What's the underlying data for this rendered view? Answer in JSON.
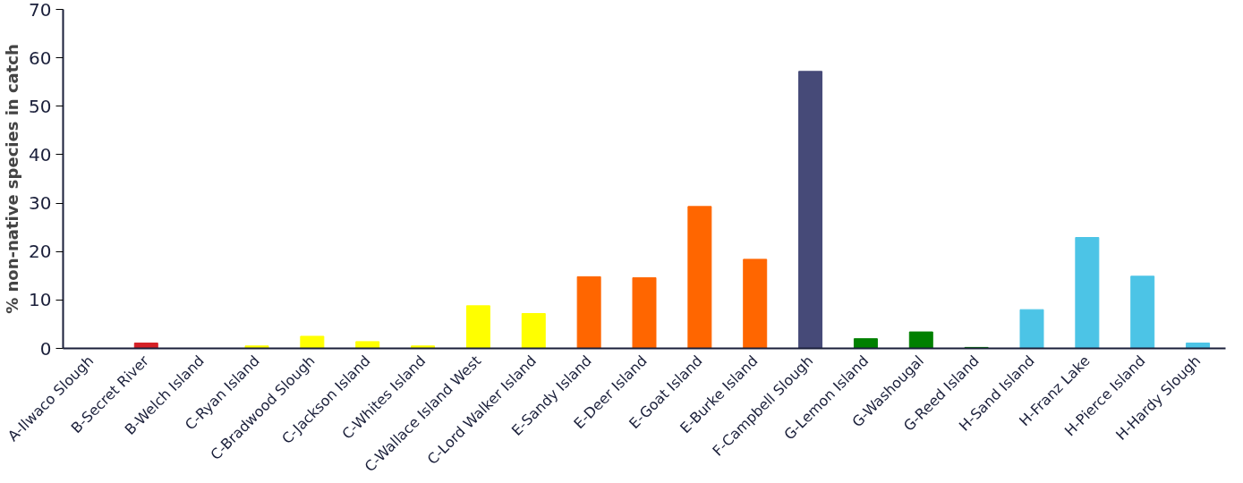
{
  "chart_data": {
    "type": "bar",
    "ylabel": "% non-native species in catch",
    "categories": [
      "A-Ilwaco Slough",
      "B-Secret River",
      "B-Welch Island",
      "C-Ryan Island",
      "C-Bradwood Slough",
      "C-Jackson Island",
      "C-Whites Island",
      "C-Wallace Island West",
      "C-Lord Walker Island",
      "E-Sandy Island",
      "E-Deer Island",
      "E-Goat Island",
      "E-Burke Island",
      "F-Campbell Slough",
      "G-Lemon Island",
      "G-Washougal",
      "G-Reed Island",
      "H-Sand Island",
      "H-Franz Lake",
      "H-Pierce Island",
      "H-Hardy Slough"
    ],
    "values": [
      0,
      1.1,
      0,
      0.5,
      2.5,
      1.4,
      0.5,
      8.8,
      7.2,
      14.8,
      14.6,
      29.3,
      18.4,
      57.2,
      2.0,
      3.4,
      0.2,
      8.0,
      22.9,
      14.9,
      1.1
    ],
    "colors": [
      "#d42027",
      "#d42027",
      "#d42027",
      "#ffff00",
      "#ffff00",
      "#ffff00",
      "#ffff00",
      "#ffff00",
      "#ffff00",
      "#ff6600",
      "#ff6600",
      "#ff6600",
      "#ff6600",
      "#464a78",
      "#008000",
      "#008000",
      "#008000",
      "#4cc4e6",
      "#4cc4e6",
      "#4cc4e6",
      "#4cc4e6"
    ],
    "ylim": [
      0,
      70
    ],
    "yticks": [
      0,
      10,
      20,
      30,
      40,
      50,
      60,
      70
    ],
    "grid": false
  }
}
